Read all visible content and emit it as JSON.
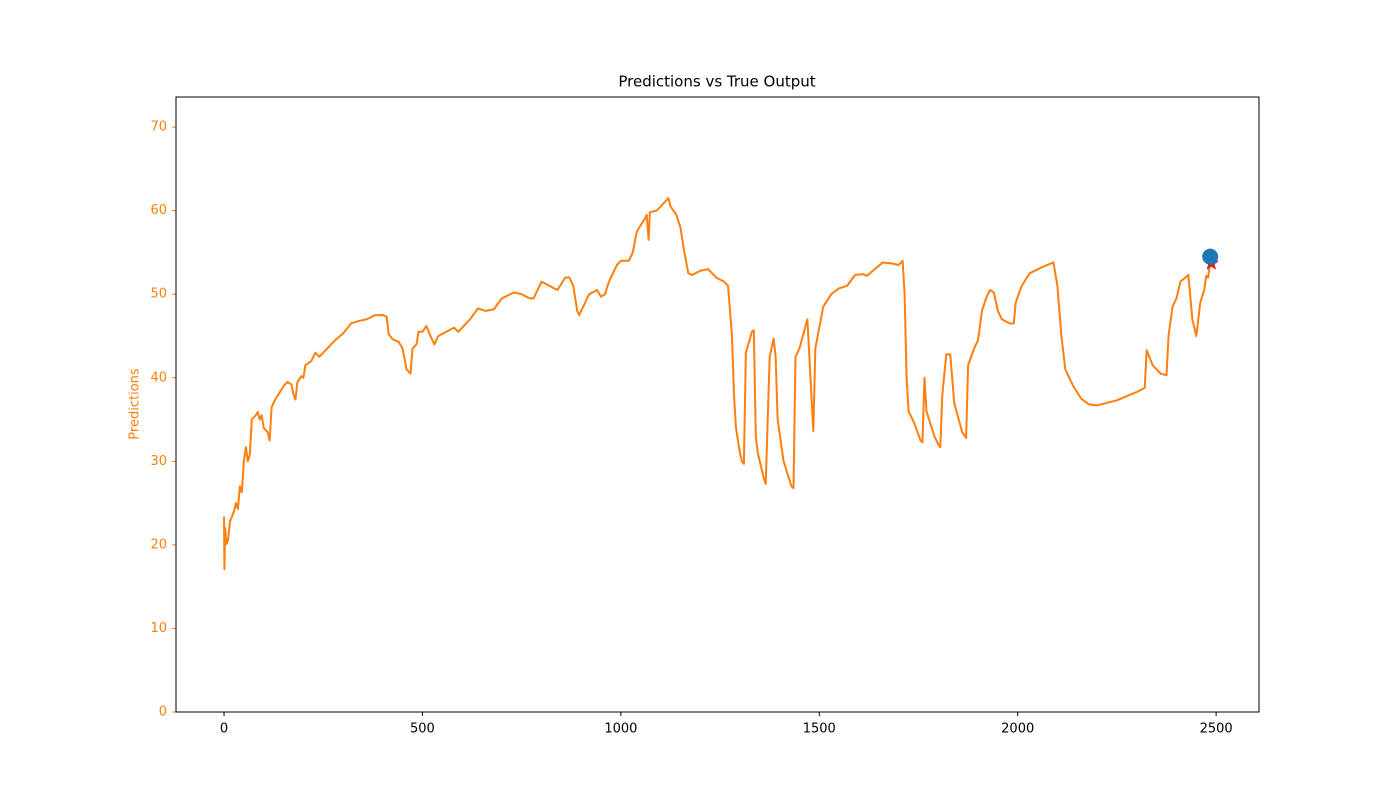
{
  "chart_data": {
    "type": "line",
    "title": "Predictions vs True Output",
    "y_label": "Predictions",
    "y_label_color": "#ff7f0e",
    "xlim": [
      -121,
      2608
    ],
    "ylim": [
      0,
      73.6
    ],
    "xticks": [
      0,
      500,
      1000,
      1500,
      2000,
      2500
    ],
    "yticks": [
      0,
      10,
      20,
      30,
      40,
      50,
      60,
      70
    ],
    "grid": false,
    "series": [
      {
        "style": "line",
        "color": "#ff7f0e",
        "x": [
          0,
          1,
          3,
          6,
          10,
          15,
          25,
          30,
          35,
          40,
          45,
          50,
          55,
          60,
          65,
          70,
          80,
          85,
          90,
          95,
          100,
          110,
          115,
          120,
          130,
          140,
          150,
          160,
          170,
          175,
          180,
          185,
          195,
          200,
          205,
          220,
          230,
          240,
          250,
          260,
          280,
          300,
          320,
          340,
          360,
          380,
          400,
          410,
          415,
          425,
          440,
          450,
          460,
          470,
          475,
          485,
          490,
          500,
          510,
          520,
          530,
          540,
          560,
          580,
          590,
          600,
          620,
          640,
          660,
          680,
          700,
          730,
          750,
          770,
          780,
          790,
          800,
          820,
          840,
          860,
          870,
          880,
          890,
          895,
          920,
          940,
          950,
          960,
          970,
          990,
          1000,
          1020,
          1030,
          1040,
          1060,
          1065,
          1070,
          1073,
          1090,
          1110,
          1120,
          1125,
          1140,
          1150,
          1160,
          1170,
          1180,
          1200,
          1220,
          1240,
          1260,
          1270,
          1280,
          1285,
          1290,
          1300,
          1305,
          1310,
          1315,
          1320,
          1330,
          1335,
          1340,
          1345,
          1360,
          1365,
          1370,
          1375,
          1385,
          1390,
          1395,
          1410,
          1430,
          1435,
          1440,
          1450,
          1470,
          1480,
          1485,
          1490,
          1500,
          1510,
          1530,
          1550,
          1570,
          1590,
          1610,
          1620,
          1640,
          1660,
          1680,
          1700,
          1710,
          1715,
          1720,
          1725,
          1740,
          1755,
          1760,
          1765,
          1770,
          1790,
          1800,
          1805,
          1810,
          1820,
          1830,
          1840,
          1860,
          1870,
          1875,
          1890,
          1900,
          1910,
          1920,
          1930,
          1940,
          1950,
          1960,
          1980,
          1990,
          1995,
          2010,
          2030,
          2060,
          2090,
          2100,
          2110,
          2120,
          2140,
          2160,
          2180,
          2200,
          2250,
          2300,
          2320,
          2325,
          2340,
          2360,
          2375,
          2380,
          2390,
          2400,
          2410,
          2430,
          2440,
          2450,
          2460,
          2470,
          2475,
          2480,
          2485,
          2488
        ],
        "values": [
          23.4,
          17.1,
          22,
          20.1,
          20.5,
          22.8,
          24,
          25,
          24.3,
          27,
          26.3,
          30,
          31.7,
          30,
          30.8,
          35,
          35.5,
          35.9,
          35,
          35.5,
          34,
          33.5,
          32.5,
          36.5,
          37.5,
          38.2,
          39,
          39.5,
          39.2,
          38,
          37.4,
          39.5,
          40.2,
          40,
          41.5,
          42,
          43,
          42.5,
          43,
          43.5,
          44.5,
          45.3,
          46.5,
          46.8,
          47,
          47.5,
          47.5,
          47.3,
          45.2,
          44.6,
          44.3,
          43.5,
          41,
          40.5,
          43.5,
          44,
          45.5,
          45.5,
          46.2,
          45,
          44,
          45,
          45.5,
          46,
          45.5,
          46,
          47,
          48.3,
          48,
          48.2,
          49.5,
          50.2,
          50,
          49.5,
          49.5,
          50.5,
          51.5,
          51,
          50.5,
          52,
          52,
          51,
          48,
          47.5,
          50,
          50.5,
          49.7,
          50,
          51.5,
          53.5,
          54,
          54,
          55,
          57.5,
          59,
          59.5,
          56.5,
          59.8,
          60,
          61,
          61.5,
          60.5,
          59.5,
          58,
          55,
          52.5,
          52.3,
          52.8,
          53,
          52,
          51.5,
          51,
          45,
          38,
          34,
          31,
          30,
          29.7,
          43,
          43.8,
          45.5,
          45.7,
          33,
          31,
          28,
          27.3,
          35,
          42.5,
          44.7,
          42.5,
          35,
          30,
          27,
          26.8,
          42.5,
          43.5,
          47,
          38,
          33.6,
          43.5,
          46,
          48.5,
          50,
          50.7,
          51,
          52.3,
          52.4,
          52.2,
          53,
          53.8,
          53.7,
          53.5,
          54,
          50,
          40,
          36,
          34.5,
          32.5,
          32.3,
          40,
          36,
          33,
          32,
          31.7,
          38,
          42.8,
          42.8,
          37,
          33.5,
          32.8,
          41.5,
          43.5,
          44.5,
          48,
          49.5,
          50.5,
          50.2,
          48,
          47,
          46.5,
          46.5,
          49,
          51,
          52.5,
          53.2,
          53.8,
          51,
          45,
          41,
          39,
          37.5,
          36.8,
          36.7,
          37.3,
          38.3,
          38.8,
          43.3,
          41.5,
          40.5,
          40.3,
          45,
          48.5,
          49.5,
          51.5,
          52.3,
          47,
          45,
          49,
          50.5,
          52.2,
          52,
          54,
          53.8
        ]
      },
      {
        "style": "star",
        "color": "#d62728",
        "x": [
          2488
        ],
        "values": [
          53.7
        ]
      },
      {
        "style": "circle",
        "color": "#1f77b4",
        "x": [
          2485
        ],
        "values": [
          54.5
        ]
      }
    ]
  }
}
